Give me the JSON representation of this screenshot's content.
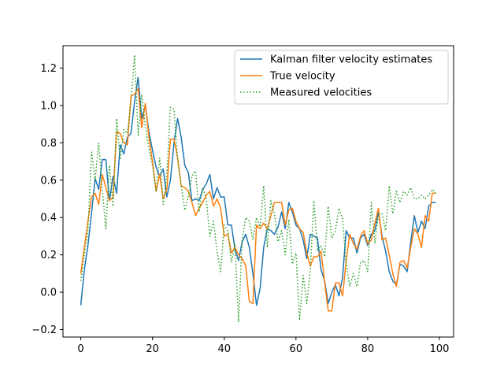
{
  "chart_data": {
    "type": "line",
    "title": "",
    "xlabel": "",
    "ylabel": "",
    "xlim": [
      -4.95,
      103.95
    ],
    "ylim": [
      -0.24,
      1.32
    ],
    "x_ticks": [
      0,
      20,
      40,
      60,
      80,
      100
    ],
    "y_ticks": [
      -0.2,
      0.0,
      0.2,
      0.4,
      0.6,
      0.8,
      1.0,
      1.2
    ],
    "x_tick_labels": [
      "0",
      "20",
      "40",
      "60",
      "80",
      "100"
    ],
    "y_tick_labels": [
      "−0.2",
      "0.0",
      "0.2",
      "0.4",
      "0.6",
      "0.8",
      "1.0",
      "1.2"
    ],
    "grid": false,
    "legend_position": "top-right",
    "series": [
      {
        "name": "Kalman filter velocity estimates",
        "color": "#1f77b4",
        "style": "solid",
        "x": [
          0,
          1,
          2,
          3,
          4,
          5,
          6,
          7,
          8,
          9,
          10,
          11,
          12,
          13,
          14,
          15,
          16,
          17,
          18,
          19,
          20,
          21,
          22,
          23,
          24,
          25,
          26,
          27,
          28,
          29,
          30,
          31,
          32,
          33,
          34,
          35,
          36,
          37,
          38,
          39,
          40,
          41,
          42,
          43,
          44,
          45,
          46,
          47,
          48,
          49,
          50,
          51,
          52,
          53,
          54,
          55,
          56,
          57,
          58,
          59,
          60,
          61,
          62,
          63,
          64,
          65,
          66,
          67,
          68,
          69,
          70,
          71,
          72,
          73,
          74,
          75,
          76,
          77,
          78,
          79,
          80,
          81,
          82,
          83,
          84,
          85,
          86,
          87,
          88,
          89,
          90,
          91,
          92,
          93,
          94,
          95,
          96,
          97,
          98,
          99
        ],
        "values": [
          -0.07,
          0.12,
          0.25,
          0.42,
          0.61,
          0.55,
          0.71,
          0.71,
          0.49,
          0.62,
          0.53,
          0.79,
          0.74,
          0.83,
          0.85,
          1.02,
          1.15,
          0.93,
          1.0,
          0.86,
          0.76,
          0.67,
          0.62,
          0.66,
          0.51,
          0.6,
          0.8,
          0.93,
          0.83,
          0.68,
          0.64,
          0.49,
          0.5,
          0.49,
          0.55,
          0.58,
          0.63,
          0.5,
          0.56,
          0.51,
          0.51,
          0.36,
          0.36,
          0.23,
          0.17,
          0.27,
          0.31,
          0.24,
          0.1,
          -0.07,
          0.02,
          0.24,
          0.34,
          0.33,
          0.31,
          0.35,
          0.43,
          0.34,
          0.48,
          0.43,
          0.36,
          0.34,
          0.28,
          0.18,
          0.31,
          0.3,
          0.29,
          0.12,
          0.06,
          -0.06,
          0.0,
          0.04,
          -0.02,
          0.08,
          0.33,
          0.29,
          0.29,
          0.21,
          0.29,
          0.31,
          0.25,
          0.31,
          0.33,
          0.43,
          0.3,
          0.22,
          0.11,
          0.06,
          0.04,
          0.15,
          0.14,
          0.11,
          0.27,
          0.41,
          0.32,
          0.38,
          0.34,
          0.46,
          0.48,
          0.48
        ]
      },
      {
        "name": "True velocity",
        "color": "#ff7f0e",
        "style": "solid",
        "x": [
          0,
          1,
          2,
          3,
          4,
          5,
          6,
          7,
          8,
          9,
          10,
          11,
          12,
          13,
          14,
          15,
          16,
          17,
          18,
          19,
          20,
          21,
          22,
          23,
          24,
          25,
          26,
          27,
          28,
          29,
          30,
          31,
          32,
          33,
          34,
          35,
          36,
          37,
          38,
          39,
          40,
          41,
          42,
          43,
          44,
          45,
          46,
          47,
          48,
          49,
          50,
          51,
          52,
          53,
          54,
          55,
          56,
          57,
          58,
          59,
          60,
          61,
          62,
          63,
          64,
          65,
          66,
          67,
          68,
          69,
          70,
          71,
          72,
          73,
          74,
          75,
          76,
          77,
          78,
          79,
          80,
          81,
          82,
          83,
          84,
          85,
          86,
          87,
          88,
          89,
          90,
          91,
          92,
          93,
          94,
          95,
          96,
          97,
          98,
          99
        ],
        "values": [
          0.1,
          0.24,
          0.38,
          0.51,
          0.53,
          0.47,
          0.63,
          0.56,
          0.49,
          0.51,
          0.86,
          0.85,
          0.8,
          0.79,
          1.05,
          1.06,
          1.09,
          0.88,
          1.01,
          0.83,
          0.7,
          0.54,
          0.63,
          0.5,
          0.55,
          0.82,
          0.82,
          0.72,
          0.57,
          0.56,
          0.54,
          0.48,
          0.41,
          0.45,
          0.48,
          0.52,
          0.54,
          0.46,
          0.5,
          0.45,
          0.3,
          0.31,
          0.21,
          0.24,
          0.2,
          0.18,
          0.14,
          -0.05,
          -0.06,
          0.36,
          0.34,
          0.37,
          0.34,
          0.41,
          0.48,
          0.48,
          0.48,
          0.36,
          0.44,
          0.45,
          0.38,
          0.34,
          0.32,
          0.21,
          0.14,
          0.19,
          0.19,
          0.22,
          0.05,
          -0.1,
          -0.1,
          0.05,
          0.05,
          -0.02,
          0.17,
          0.31,
          0.26,
          0.23,
          0.3,
          0.33,
          0.26,
          0.28,
          0.37,
          0.45,
          0.28,
          0.29,
          0.2,
          0.1,
          0.03,
          0.16,
          0.17,
          0.13,
          0.24,
          0.34,
          0.31,
          0.24,
          0.41,
          0.38,
          0.53,
          0.53
        ]
      },
      {
        "name": "Measured velocities",
        "color": "#2ca02c",
        "style": "dotted",
        "x": [
          0,
          1,
          2,
          3,
          4,
          5,
          6,
          7,
          8,
          9,
          10,
          11,
          12,
          13,
          14,
          15,
          16,
          17,
          18,
          19,
          20,
          21,
          22,
          23,
          24,
          25,
          26,
          27,
          28,
          29,
          30,
          31,
          32,
          33,
          34,
          35,
          36,
          37,
          38,
          39,
          40,
          41,
          42,
          43,
          44,
          45,
          46,
          47,
          48,
          49,
          50,
          51,
          52,
          53,
          54,
          55,
          56,
          57,
          58,
          59,
          60,
          61,
          62,
          63,
          64,
          65,
          66,
          67,
          68,
          69,
          70,
          71,
          72,
          73,
          74,
          75,
          76,
          77,
          78,
          79,
          80,
          81,
          82,
          83,
          84,
          85,
          86,
          87,
          88,
          89,
          90,
          91,
          92,
          93,
          94,
          95,
          96,
          97,
          98,
          99
        ],
        "values": [
          0.06,
          0.2,
          0.33,
          0.75,
          0.6,
          0.8,
          0.55,
          0.34,
          0.68,
          0.46,
          0.93,
          0.71,
          0.87,
          0.85,
          1.02,
          1.27,
          0.84,
          1.06,
          0.89,
          0.77,
          0.68,
          0.54,
          0.72,
          0.47,
          0.63,
          0.99,
          0.98,
          0.71,
          0.57,
          0.44,
          0.51,
          0.62,
          0.65,
          0.43,
          0.56,
          0.5,
          0.3,
          0.38,
          0.22,
          0.11,
          0.36,
          0.33,
          0.16,
          0.26,
          -0.16,
          0.28,
          0.4,
          0.38,
          0.28,
          0.4,
          0.35,
          0.57,
          0.24,
          0.49,
          0.42,
          0.27,
          0.33,
          0.2,
          0.39,
          0.15,
          0.21,
          -0.15,
          0.09,
          -0.06,
          0.12,
          0.49,
          0.22,
          0.25,
          0.19,
          0.46,
          0.29,
          0.33,
          0.45,
          0.39,
          0.15,
          0.03,
          0.1,
          0.03,
          0.16,
          0.17,
          0.11,
          0.48,
          0.26,
          0.42,
          0.42,
          0.33,
          0.57,
          0.42,
          0.54,
          0.48,
          0.54,
          0.52,
          0.56,
          0.5,
          0.5,
          0.52,
          0.5,
          0.52,
          0.55,
          0.53
        ]
      }
    ]
  }
}
